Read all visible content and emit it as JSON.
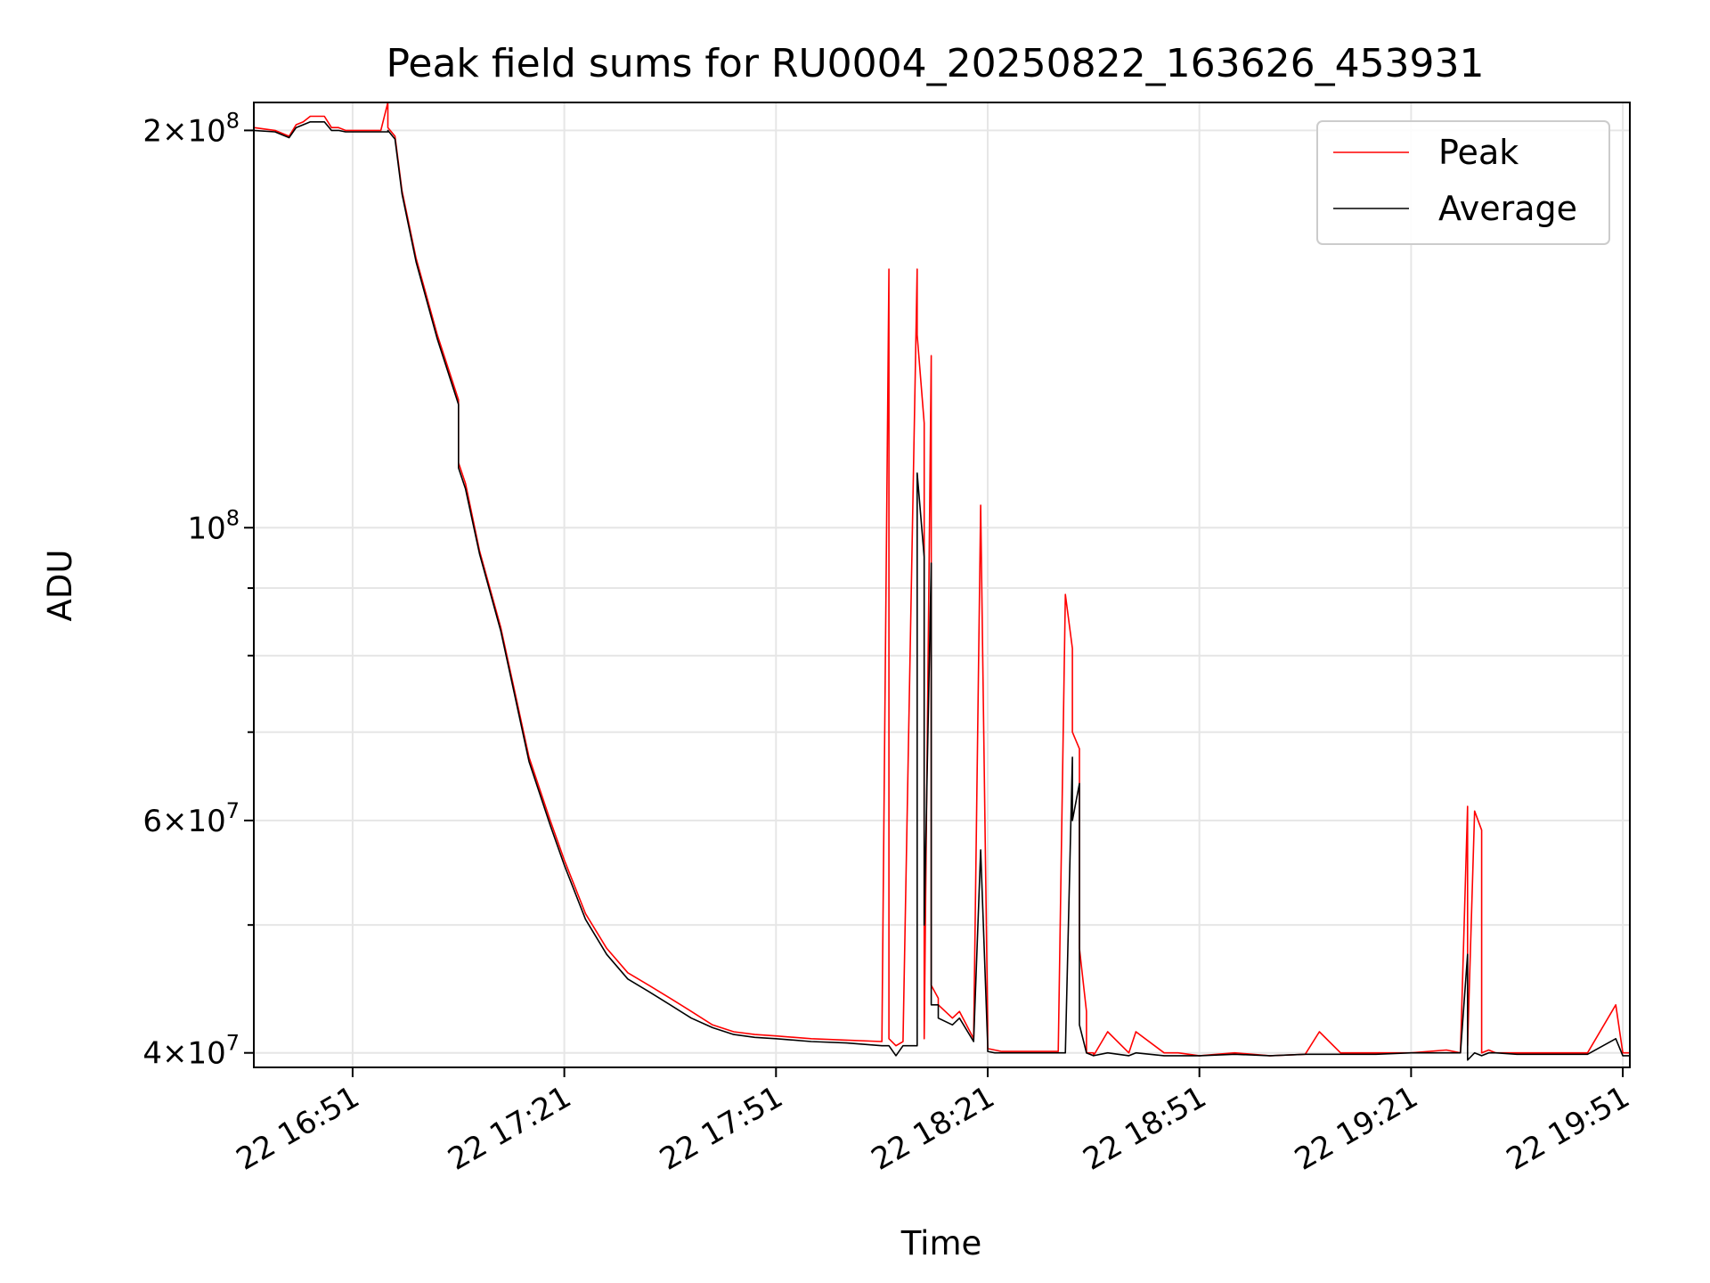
{
  "chart_data": {
    "type": "line",
    "title": "Peak field sums for RU0004_20250822_163626_453931",
    "xlabel": "Time",
    "ylabel": "ADU",
    "yscale": "log",
    "ylim": [
      39000000,
      210000000
    ],
    "xlim": [
      "2025-08-22 16:37",
      "2025-08-22 19:52"
    ],
    "grid": true,
    "legend": "top-right",
    "x_ticks": [
      "22 16:51",
      "22 17:21",
      "22 17:51",
      "22 18:21",
      "22 18:51",
      "22 19:21",
      "22 19:51"
    ],
    "y_ticks": [
      {
        "value": 40000000,
        "base": "4",
        "exp": "7"
      },
      {
        "value": 60000000,
        "base": "6",
        "exp": "7"
      },
      {
        "value": 100000000,
        "base": "",
        "exp": "8"
      },
      {
        "value": 200000000,
        "base": "2",
        "exp": "8"
      }
    ],
    "y_minor": [
      50000000,
      70000000,
      80000000,
      90000000
    ],
    "series": [
      {
        "name": "Peak",
        "color": "#ff0000",
        "x": [
          "16:37",
          "16:40",
          "16:42",
          "16:43",
          "16:44",
          "16:45",
          "16:47",
          "16:48",
          "16:49",
          "16:50",
          "16:52",
          "16:55",
          "16:56",
          "16:56",
          "16:57",
          "16:58",
          "17:00",
          "17:03",
          "17:06",
          "17:06",
          "17:07",
          "17:09",
          "17:12",
          "17:14",
          "17:16",
          "17:19",
          "17:21",
          "17:24",
          "17:27",
          "17:30",
          "17:33",
          "17:36",
          "17:39",
          "17:42",
          "17:45",
          "17:48",
          "17:51",
          "17:56",
          "18:01",
          "18:06",
          "18:07",
          "18:07",
          "18:08",
          "18:09",
          "18:11",
          "18:11",
          "18:12",
          "18:12",
          "18:13",
          "18:13",
          "18:13",
          "18:14",
          "18:14",
          "18:16",
          "18:17",
          "18:19",
          "18:20",
          "18:21",
          "18:21",
          "18:22",
          "18:23",
          "18:26",
          "18:29",
          "18:31",
          "18:32",
          "18:33",
          "18:33",
          "18:34",
          "18:34",
          "18:35",
          "18:35",
          "18:36",
          "18:36",
          "18:38",
          "18:41",
          "18:42",
          "18:46",
          "18:48",
          "18:51",
          "18:56",
          "19:01",
          "19:06",
          "19:08",
          "19:11",
          "19:16",
          "19:21",
          "19:26",
          "19:28",
          "19:29",
          "19:29",
          "19:30",
          "19:31",
          "19:31",
          "19:32",
          "19:33",
          "19:36",
          "19:41",
          "19:46",
          "19:50",
          "19:51",
          "19:52"
        ],
        "values": [
          201000000,
          200000000,
          198000000,
          202000000,
          203000000,
          205000000,
          205000000,
          201000000,
          201000000,
          200000000,
          200000000,
          200000000,
          210000000,
          201000000,
          198000000,
          180000000,
          160000000,
          140000000,
          125000000,
          112000000,
          108000000,
          96000000,
          84000000,
          75000000,
          67000000,
          60000000,
          56000000,
          51000000,
          48000000,
          46000000,
          45000000,
          44000000,
          43000000,
          42000000,
          41500000,
          41300000,
          41200000,
          41000000,
          40900000,
          40800000,
          157000000,
          41000000,
          40500000,
          40800000,
          157000000,
          140000000,
          120000000,
          41000000,
          135000000,
          50000000,
          45000000,
          44000000,
          43500000,
          42500000,
          43000000,
          41000000,
          104000000,
          42000000,
          40300000,
          40200000,
          40100000,
          40100000,
          40100000,
          40100000,
          89000000,
          81000000,
          70000000,
          68000000,
          48000000,
          43000000,
          40000000,
          40000000,
          39800000,
          41500000,
          40000000,
          41500000,
          40000000,
          40000000,
          39800000,
          40000000,
          39800000,
          39900000,
          41500000,
          40000000,
          40000000,
          40000000,
          40200000,
          40000000,
          61500000,
          40500000,
          61000000,
          59000000,
          40000000,
          40200000,
          40000000,
          40000000,
          40000000,
          40000000,
          43500000,
          40000000,
          40000000
        ]
      },
      {
        "name": "Average",
        "color": "#000000",
        "x": [
          "16:37",
          "16:40",
          "16:42",
          "16:43",
          "16:44",
          "16:45",
          "16:47",
          "16:48",
          "16:49",
          "16:50",
          "16:52",
          "16:55",
          "16:56",
          "16:56",
          "16:57",
          "16:58",
          "17:00",
          "17:03",
          "17:06",
          "17:06",
          "17:07",
          "17:09",
          "17:12",
          "17:14",
          "17:16",
          "17:19",
          "17:21",
          "17:24",
          "17:27",
          "17:30",
          "17:33",
          "17:36",
          "17:39",
          "17:42",
          "17:45",
          "17:48",
          "17:51",
          "17:56",
          "18:01",
          "18:06",
          "18:07",
          "18:07",
          "18:08",
          "18:09",
          "18:11",
          "18:11",
          "18:12",
          "18:12",
          "18:13",
          "18:13",
          "18:13",
          "18:14",
          "18:14",
          "18:16",
          "18:17",
          "18:19",
          "18:20",
          "18:21",
          "18:21",
          "18:22",
          "18:23",
          "18:26",
          "18:29",
          "18:31",
          "18:32",
          "18:33",
          "18:33",
          "18:34",
          "18:34",
          "18:35",
          "18:35",
          "18:36",
          "18:36",
          "18:38",
          "18:41",
          "18:42",
          "18:46",
          "18:48",
          "18:51",
          "18:56",
          "19:01",
          "19:06",
          "19:08",
          "19:11",
          "19:16",
          "19:21",
          "19:26",
          "19:28",
          "19:29",
          "19:29",
          "19:30",
          "19:31",
          "19:31",
          "19:32",
          "19:33",
          "19:36",
          "19:41",
          "19:46",
          "19:50",
          "19:51",
          "19:52"
        ],
        "values": [
          200000000,
          199500000,
          197500000,
          201000000,
          202000000,
          203000000,
          203000000,
          200000000,
          200000000,
          199500000,
          199500000,
          199500000,
          199500000,
          200000000,
          197000000,
          179000000,
          159000000,
          139000000,
          124000000,
          111000000,
          107000000,
          95500000,
          83500000,
          74500000,
          66500000,
          59500000,
          55500000,
          50500000,
          47500000,
          45500000,
          44500000,
          43500000,
          42500000,
          41800000,
          41300000,
          41100000,
          41000000,
          40800000,
          40700000,
          40500000,
          40500000,
          40500000,
          39800000,
          40500000,
          40500000,
          110000000,
          95000000,
          50000000,
          94000000,
          45000000,
          43500000,
          43500000,
          42500000,
          42000000,
          42500000,
          40800000,
          57000000,
          40500000,
          40100000,
          40000000,
          40000000,
          40000000,
          40000000,
          40000000,
          40000000,
          67000000,
          60000000,
          64000000,
          42000000,
          40000000,
          40000000,
          39800000,
          39800000,
          40000000,
          39800000,
          40000000,
          39800000,
          39800000,
          39800000,
          39900000,
          39800000,
          39900000,
          39900000,
          39900000,
          39900000,
          40000000,
          40000000,
          40000000,
          47500000,
          39500000,
          40000000,
          39800000,
          39800000,
          40000000,
          40000000,
          39900000,
          39900000,
          39900000,
          41000000,
          39800000,
          39800000
        ]
      }
    ]
  }
}
